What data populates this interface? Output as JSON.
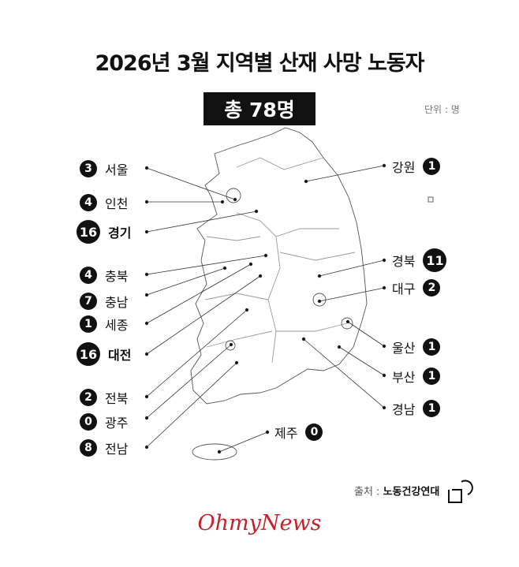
{
  "title": "2026년 3월 지역별 산재 사망 노동자",
  "total": "총 78명",
  "unit": "단위 : 명",
  "regions": {
    "seoul": {
      "name": "서울",
      "value": "3"
    },
    "incheon": {
      "name": "인천",
      "value": "4"
    },
    "gyeonggi": {
      "name": "경기",
      "value": "16"
    },
    "chungbuk": {
      "name": "충북",
      "value": "4"
    },
    "chungnam": {
      "name": "충남",
      "value": "7"
    },
    "sejong": {
      "name": "세종",
      "value": "1"
    },
    "daejeon": {
      "name": "대전",
      "value": "16"
    },
    "jeonbuk": {
      "name": "전북",
      "value": "2"
    },
    "gwangju": {
      "name": "광주",
      "value": "0"
    },
    "jeonnam": {
      "name": "전남",
      "value": "8"
    },
    "jeju": {
      "name": "제주",
      "value": "0"
    },
    "gangwon": {
      "name": "강원",
      "value": "1"
    },
    "gyeongbuk": {
      "name": "경북",
      "value": "11"
    },
    "daegu": {
      "name": "대구",
      "value": "2"
    },
    "ulsan": {
      "name": "울산",
      "value": "1"
    },
    "busan": {
      "name": "부산",
      "value": "1"
    },
    "gyeongnam": {
      "name": "경남",
      "value": "1"
    }
  },
  "source": {
    "label": "출처 :",
    "org": "노동건강연대"
  },
  "logo": "OhmyNews",
  "colors": {
    "badge": "#111111",
    "logo": "#c8202a"
  }
}
